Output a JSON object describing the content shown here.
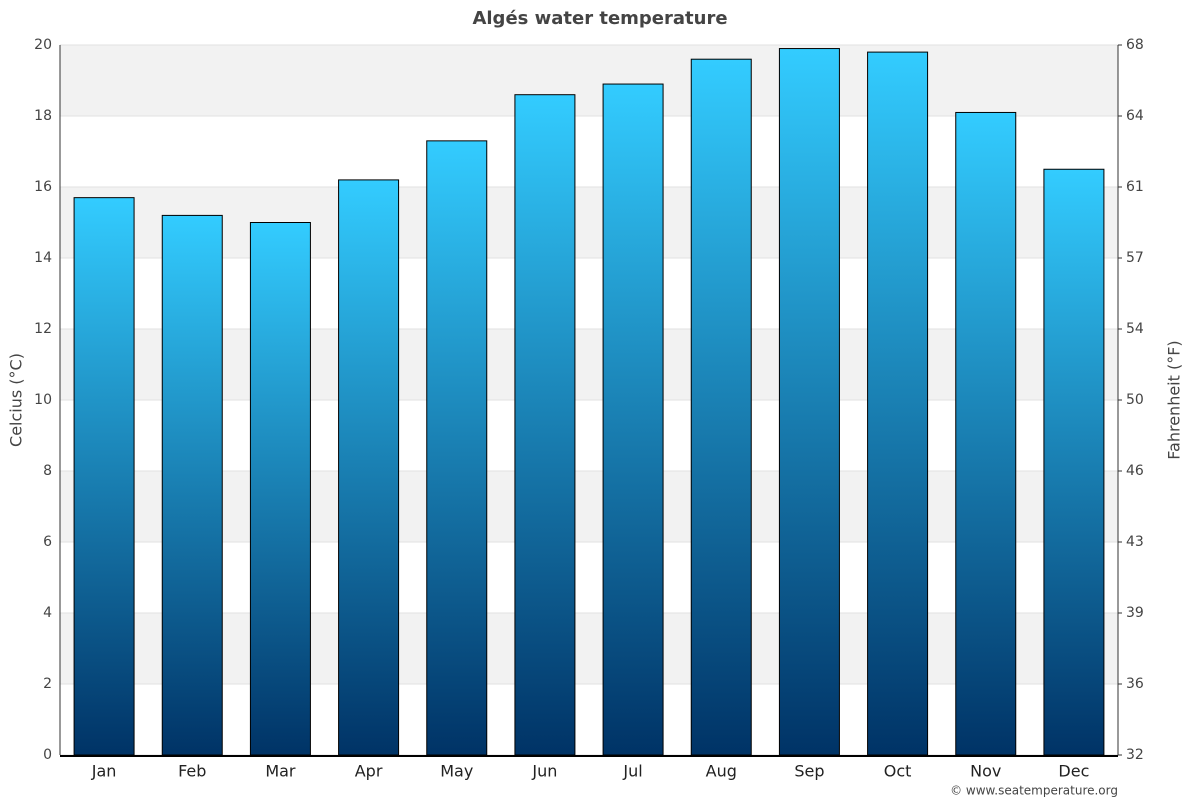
{
  "chart_data": {
    "type": "bar",
    "title": "Algés water temperature",
    "categories": [
      "Jan",
      "Feb",
      "Mar",
      "Apr",
      "May",
      "Jun",
      "Jul",
      "Aug",
      "Sep",
      "Oct",
      "Nov",
      "Dec"
    ],
    "values": [
      15.7,
      15.2,
      15.0,
      16.2,
      17.3,
      18.6,
      18.9,
      19.6,
      19.9,
      19.8,
      18.1,
      16.5
    ],
    "gradient": [
      "#33ccff",
      "#003366"
    ],
    "ylabel": "Celcius (°C)",
    "y2label": "Fahrenheit (°F)",
    "ylim": [
      0,
      20
    ],
    "yticks": [
      0,
      2,
      4,
      6,
      8,
      10,
      12,
      14,
      16,
      18,
      20
    ],
    "y2lim": [
      32,
      68
    ],
    "y2ticks": [
      32,
      {
        "value": 35.6,
        "label": "36"
      },
      {
        "value": 39.2,
        "label": "39"
      },
      {
        "value": 42.8,
        "label": "43"
      },
      {
        "value": 46.4,
        "label": "46"
      },
      50,
      {
        "value": 53.6,
        "label": "54"
      },
      {
        "value": 57.2,
        "label": "57"
      },
      {
        "value": 60.8,
        "label": "61"
      },
      {
        "value": 64.4,
        "label": "64"
      },
      68
    ],
    "grid": true,
    "banded": true,
    "source": "© www.seatemperature.org"
  }
}
